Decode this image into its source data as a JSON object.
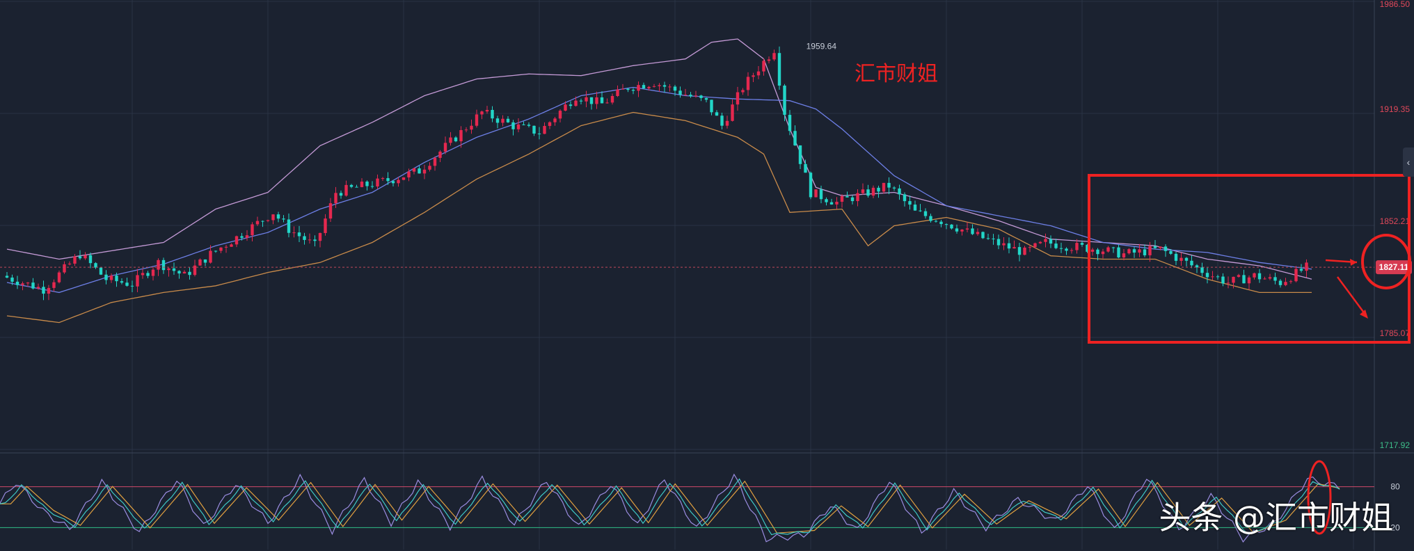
{
  "chart_data": {
    "type": "candlestick",
    "price_axis": {
      "ticks": [
        {
          "value": 1986.5,
          "label": "1986.50"
        },
        {
          "value": 1919.35,
          "label": "1919.35"
        },
        {
          "value": 1852.21,
          "label": "1852.21"
        },
        {
          "value": 1785.07,
          "label": "1785.07"
        },
        {
          "value": 1717.92,
          "label": "1717.92"
        }
      ],
      "ylim": [
        1717.92,
        1986.5
      ]
    },
    "current_price": {
      "value": 1827.11,
      "label": "1827.11"
    },
    "peak_label": {
      "value": 1959.64,
      "label": "1959.64"
    },
    "overlay_text": "汇市财姐",
    "bollinger_anchors": {
      "mid": [
        [
          0,
          1818
        ],
        [
          10,
          1812
        ],
        [
          20,
          1822
        ],
        [
          30,
          1829
        ],
        [
          40,
          1840
        ],
        [
          50,
          1848
        ],
        [
          60,
          1862
        ],
        [
          70,
          1872
        ],
        [
          80,
          1890
        ],
        [
          90,
          1905
        ],
        [
          100,
          1916
        ],
        [
          110,
          1930
        ],
        [
          120,
          1935
        ],
        [
          130,
          1930
        ],
        [
          140,
          1928
        ],
        [
          150,
          1927
        ],
        [
          155,
          1922
        ],
        [
          160,
          1910
        ],
        [
          170,
          1882
        ],
        [
          180,
          1864
        ],
        [
          190,
          1858
        ],
        [
          200,
          1852
        ],
        [
          210,
          1842
        ],
        [
          220,
          1838
        ],
        [
          230,
          1836
        ],
        [
          240,
          1830
        ],
        [
          250,
          1826
        ]
      ],
      "upper": [
        [
          0,
          1838
        ],
        [
          10,
          1832
        ],
        [
          20,
          1837
        ],
        [
          30,
          1842
        ],
        [
          40,
          1862
        ],
        [
          50,
          1872
        ],
        [
          60,
          1900
        ],
        [
          70,
          1914
        ],
        [
          80,
          1930
        ],
        [
          90,
          1940
        ],
        [
          100,
          1943
        ],
        [
          110,
          1942
        ],
        [
          120,
          1948
        ],
        [
          130,
          1952
        ],
        [
          135,
          1962
        ],
        [
          140,
          1964
        ],
        [
          145,
          1952
        ],
        [
          150,
          1910
        ],
        [
          155,
          1875
        ],
        [
          160,
          1870
        ],
        [
          170,
          1872
        ],
        [
          180,
          1864
        ],
        [
          190,
          1855
        ],
        [
          200,
          1844
        ],
        [
          210,
          1842
        ],
        [
          220,
          1840
        ],
        [
          230,
          1832
        ],
        [
          240,
          1828
        ],
        [
          250,
          1820
        ]
      ],
      "lower": [
        [
          0,
          1798
        ],
        [
          10,
          1794
        ],
        [
          20,
          1806
        ],
        [
          30,
          1812
        ],
        [
          40,
          1816
        ],
        [
          50,
          1824
        ],
        [
          60,
          1830
        ],
        [
          70,
          1842
        ],
        [
          80,
          1860
        ],
        [
          90,
          1880
        ],
        [
          100,
          1895
        ],
        [
          110,
          1912
        ],
        [
          120,
          1920
        ],
        [
          130,
          1915
        ],
        [
          140,
          1905
        ],
        [
          145,
          1895
        ],
        [
          150,
          1860
        ],
        [
          160,
          1862
        ],
        [
          165,
          1840
        ],
        [
          170,
          1852
        ],
        [
          180,
          1857
        ],
        [
          190,
          1850
        ],
        [
          200,
          1834
        ],
        [
          210,
          1832
        ],
        [
          220,
          1832
        ],
        [
          230,
          1820
        ],
        [
          240,
          1812
        ],
        [
          250,
          1812
        ]
      ]
    },
    "price_anchors": [
      [
        0,
        1822
      ],
      [
        8,
        1814
      ],
      [
        15,
        1835
      ],
      [
        20,
        1820
      ],
      [
        25,
        1817
      ],
      [
        30,
        1830
      ],
      [
        35,
        1822
      ],
      [
        40,
        1835
      ],
      [
        45,
        1845
      ],
      [
        52,
        1860
      ],
      [
        55,
        1850
      ],
      [
        60,
        1840
      ],
      [
        64,
        1872
      ],
      [
        68,
        1875
      ],
      [
        75,
        1880
      ],
      [
        80,
        1885
      ],
      [
        88,
        1908
      ],
      [
        92,
        1920
      ],
      [
        98,
        1912
      ],
      [
        103,
        1908
      ],
      [
        110,
        1930
      ],
      [
        115,
        1925
      ],
      [
        120,
        1935
      ],
      [
        125,
        1938
      ],
      [
        130,
        1932
      ],
      [
        135,
        1926
      ],
      [
        138,
        1912
      ],
      [
        142,
        1935
      ],
      [
        148,
        1958
      ],
      [
        150,
        1920
      ],
      [
        155,
        1872
      ],
      [
        160,
        1866
      ],
      [
        166,
        1872
      ],
      [
        170,
        1876
      ],
      [
        175,
        1860
      ],
      [
        180,
        1855
      ],
      [
        186,
        1847
      ],
      [
        192,
        1840
      ],
      [
        196,
        1836
      ],
      [
        200,
        1842
      ],
      [
        204,
        1840
      ],
      [
        210,
        1838
      ],
      [
        215,
        1835
      ],
      [
        222,
        1838
      ],
      [
        230,
        1825
      ],
      [
        235,
        1818
      ],
      [
        240,
        1822
      ],
      [
        245,
        1818
      ],
      [
        250,
        1827
      ]
    ],
    "oscillator": {
      "levels": [
        {
          "value": 80,
          "label": "80"
        },
        {
          "value": 20,
          "label": "20"
        }
      ],
      "ylim": [
        0,
        100
      ],
      "cycles": [
        [
          0,
          55
        ],
        [
          3,
          82
        ],
        [
          8,
          45
        ],
        [
          13,
          22
        ],
        [
          19,
          82
        ],
        [
          26,
          18
        ],
        [
          33,
          85
        ],
        [
          38,
          25
        ],
        [
          44,
          80
        ],
        [
          50,
          30
        ],
        [
          56,
          88
        ],
        [
          62,
          20
        ],
        [
          68,
          85
        ],
        [
          73,
          30
        ],
        [
          78,
          82
        ],
        [
          84,
          25
        ],
        [
          90,
          86
        ],
        [
          96,
          28
        ],
        [
          102,
          84
        ],
        [
          108,
          24
        ],
        [
          114,
          80
        ],
        [
          119,
          26
        ],
        [
          124,
          86
        ],
        [
          130,
          22
        ],
        [
          137,
          90
        ],
        [
          143,
          10
        ],
        [
          150,
          14
        ],
        [
          155,
          52
        ],
        [
          160,
          20
        ],
        [
          166,
          84
        ],
        [
          172,
          18
        ],
        [
          178,
          70
        ],
        [
          184,
          24
        ],
        [
          190,
          60
        ],
        [
          197,
          32
        ],
        [
          203,
          78
        ],
        [
          208,
          20
        ],
        [
          214,
          88
        ],
        [
          220,
          22
        ],
        [
          226,
          64
        ],
        [
          232,
          10
        ],
        [
          238,
          30
        ],
        [
          244,
          86
        ],
        [
          250,
          76
        ]
      ]
    },
    "colors": {
      "background": "#1b2230",
      "grid": "#2a3344",
      "up": "#e5284f",
      "down": "#22d6c8",
      "upper_band": "#c49ad6",
      "mid_band": "#6d7fe6",
      "lower_band": "#c98b4a",
      "price_axis_text": "#e0485a",
      "lower_axis_text": "#3dbf8a",
      "annotation": "#ee2222",
      "osc_k": "#9a8ce0",
      "osc_d": "#e0a040",
      "osc_j": "#3fc9c6",
      "level80": "#d14a6a",
      "level20": "#2fbf88"
    }
  },
  "watermark": "头条 @汇市财姐"
}
